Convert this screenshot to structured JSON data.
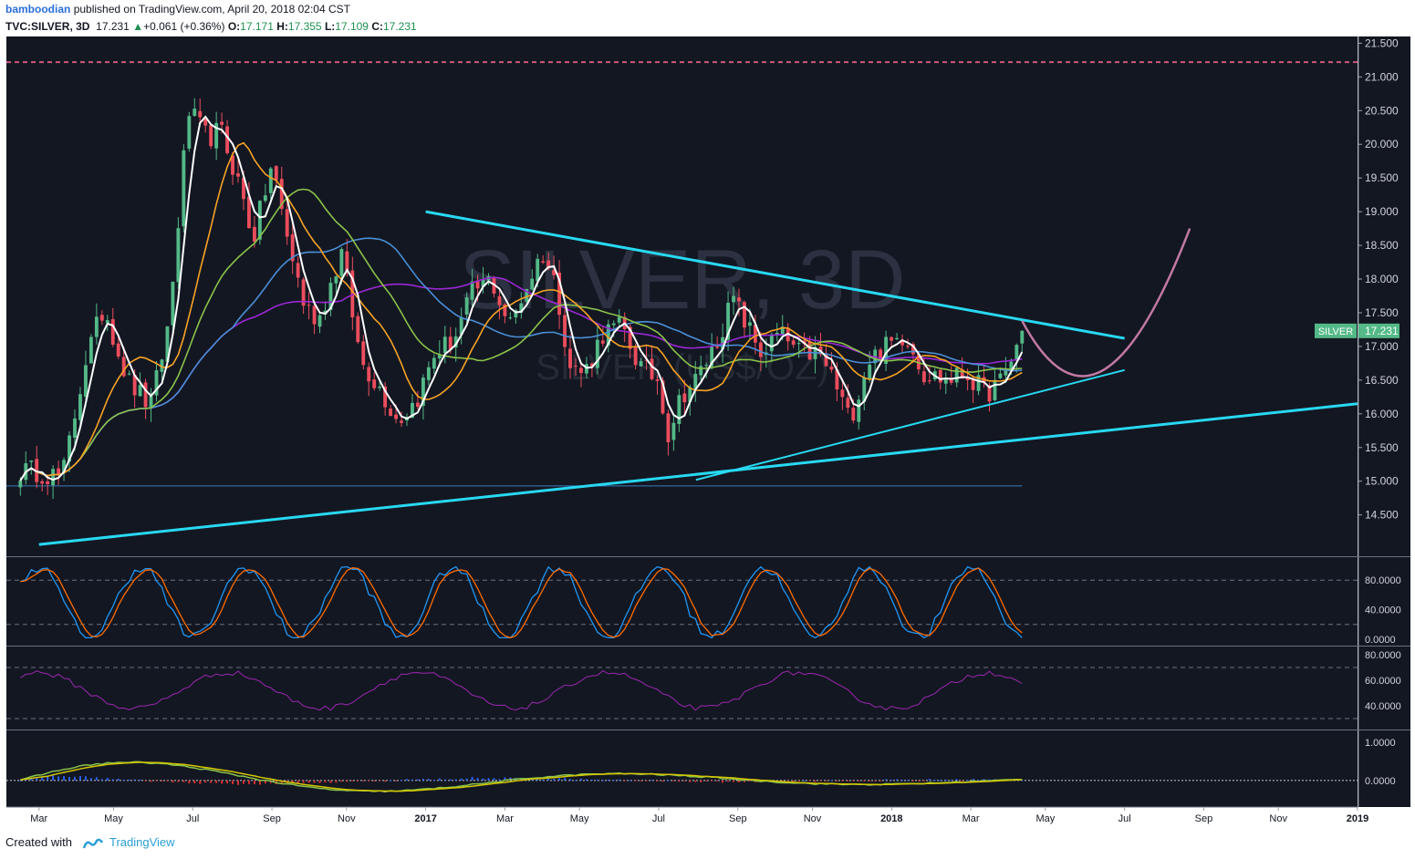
{
  "header": {
    "user": "bamboodian",
    "published": "published on TradingView.com, April 20, 2018 02:04 CST",
    "symbol": "TVC:SILVER, 3D",
    "last": "17.231",
    "change": "+0.061 (+0.36%)",
    "open_label": "O:",
    "open": "17.171",
    "high_label": "H:",
    "high": "17.355",
    "low_label": "L:",
    "low": "17.109",
    "close_label": "C:",
    "close": "17.231"
  },
  "footer": {
    "created_with": "Created with",
    "brand": "TradingView"
  },
  "colors": {
    "background": "#131722",
    "up": "#53b987",
    "down": "#eb4d5c",
    "trendline": "#28d9f2",
    "projection": "#c279a4",
    "resistance": "#d0577c",
    "ma_fast": "#ffffff",
    "ma_orange": "#f7a325",
    "ma_green": "#8bc34a",
    "ma_blue": "#4a8fd6",
    "ma_purple": "#9b27d6",
    "stoch_k": "#2196f3",
    "stoch_d": "#ff6d00",
    "rsi": "#9c27b0",
    "macd": "#8bc34a",
    "signal": "#d4c700",
    "hist_pos": "#2962ff",
    "hist_neg": "#d32f2f"
  },
  "chart_data": {
    "type": "candlestick",
    "watermark": "SILVER, 3D",
    "watermark_sub": "SILVER (US$/OZ)",
    "ylim": [
      13.9,
      21.6
    ],
    "price_ticks": [
      "21.500",
      "21.000",
      "20.500",
      "20.000",
      "19.500",
      "19.000",
      "18.500",
      "18.000",
      "17.500",
      "17.000",
      "16.500",
      "16.000",
      "15.500",
      "15.000",
      "14.500"
    ],
    "price_tick_values": [
      21.5,
      21.0,
      20.5,
      20.0,
      19.5,
      19.0,
      18.5,
      18.0,
      17.5,
      17.0,
      16.5,
      16.0,
      15.5,
      15.0,
      14.5
    ],
    "time_axis": [
      {
        "label": "Mar",
        "t": 2016.17
      },
      {
        "label": "May",
        "t": 2016.33
      },
      {
        "label": "Jul",
        "t": 2016.5
      },
      {
        "label": "Sep",
        "t": 2016.67
      },
      {
        "label": "Nov",
        "t": 2016.83
      },
      {
        "label": "2017",
        "t": 2017.0
      },
      {
        "label": "Mar",
        "t": 2017.17
      },
      {
        "label": "May",
        "t": 2017.33
      },
      {
        "label": "Jul",
        "t": 2017.5
      },
      {
        "label": "Sep",
        "t": 2017.67
      },
      {
        "label": "Nov",
        "t": 2017.83
      },
      {
        "label": "2018",
        "t": 2018.0
      },
      {
        "label": "Mar",
        "t": 2018.17
      },
      {
        "label": "May",
        "t": 2018.33
      },
      {
        "label": "Jul",
        "t": 2018.5
      },
      {
        "label": "Sep",
        "t": 2018.67
      },
      {
        "label": "Nov",
        "t": 2018.83
      },
      {
        "label": "2019",
        "t": 2019.0
      }
    ],
    "price_label": {
      "name": "SILVER",
      "value": "17.231"
    },
    "resistance_level": 21.22,
    "support_level": 14.93,
    "trendlines": [
      {
        "name": "upper",
        "from": [
          2017.0,
          19.0
        ],
        "to": [
          2018.5,
          17.12
        ],
        "width": 3
      },
      {
        "name": "lower",
        "from": [
          2017.58,
          15.02
        ],
        "to": [
          2018.5,
          16.65
        ],
        "width": 2
      },
      {
        "name": "long",
        "from": [
          2016.17,
          14.06
        ],
        "to": [
          2019.0,
          16.15
        ],
        "width": 3
      }
    ],
    "projection": [
      [
        2018.28,
        17.38
      ],
      [
        2018.4,
        16.62
      ],
      [
        2018.52,
        17.2
      ],
      [
        2018.64,
        18.75
      ]
    ],
    "anchors": [
      [
        2016.17,
        15.15
      ],
      [
        2016.22,
        15.05
      ],
      [
        2016.27,
        16.8
      ],
      [
        2016.31,
        17.6
      ],
      [
        2016.36,
        16.5
      ],
      [
        2016.41,
        16.1
      ],
      [
        2016.45,
        17.4
      ],
      [
        2016.49,
        20.5
      ],
      [
        2016.53,
        20.1
      ],
      [
        2016.56,
        20.2
      ],
      [
        2016.6,
        19.4
      ],
      [
        2016.63,
        18.6
      ],
      [
        2016.67,
        19.7
      ],
      [
        2016.7,
        18.7
      ],
      [
        2016.74,
        17.6
      ],
      [
        2016.77,
        17.4
      ],
      [
        2016.82,
        18.4
      ],
      [
        2016.86,
        16.8
      ],
      [
        2016.9,
        16.4
      ],
      [
        2016.94,
        15.9
      ],
      [
        2016.98,
        16.2
      ],
      [
        2017.02,
        16.9
      ],
      [
        2017.06,
        17.1
      ],
      [
        2017.1,
        17.8
      ],
      [
        2017.14,
        18.0
      ],
      [
        2017.18,
        17.3
      ],
      [
        2017.21,
        17.8
      ],
      [
        2017.25,
        18.4
      ],
      [
        2017.28,
        17.9
      ],
      [
        2017.31,
        16.7
      ],
      [
        2017.34,
        16.6
      ],
      [
        2017.38,
        17.2
      ],
      [
        2017.42,
        17.3
      ],
      [
        2017.46,
        16.7
      ],
      [
        2017.5,
        16.5
      ],
      [
        2017.52,
        15.7
      ],
      [
        2017.55,
        16.3
      ],
      [
        2017.58,
        16.5
      ],
      [
        2017.62,
        17.0
      ],
      [
        2017.66,
        17.7
      ],
      [
        2017.69,
        17.3
      ],
      [
        2017.72,
        16.9
      ],
      [
        2017.76,
        17.2
      ],
      [
        2017.8,
        16.9
      ],
      [
        2017.84,
        16.9
      ],
      [
        2017.87,
        16.6
      ],
      [
        2017.91,
        15.9
      ],
      [
        2017.95,
        16.8
      ],
      [
        2017.99,
        17.0
      ],
      [
        2018.03,
        17.2
      ],
      [
        2018.07,
        16.6
      ],
      [
        2018.12,
        16.5
      ],
      [
        2018.16,
        16.6
      ],
      [
        2018.2,
        16.3
      ],
      [
        2018.24,
        16.5
      ],
      [
        2018.28,
        17.23
      ]
    ],
    "stochastic": {
      "ticks": [
        "80.0000",
        "40.0000",
        "0.0000"
      ],
      "tick_values": [
        80,
        40,
        0
      ],
      "levels": [
        80,
        20
      ]
    },
    "rsi": {
      "ticks": [
        "80.0000",
        "60.0000",
        "40.0000"
      ],
      "tick_values": [
        80,
        60,
        40
      ],
      "levels": [
        70,
        30
      ]
    },
    "macd": {
      "ticks": [
        "1.0000",
        "0.0000"
      ],
      "tick_values": [
        1.0,
        0.0
      ]
    }
  }
}
